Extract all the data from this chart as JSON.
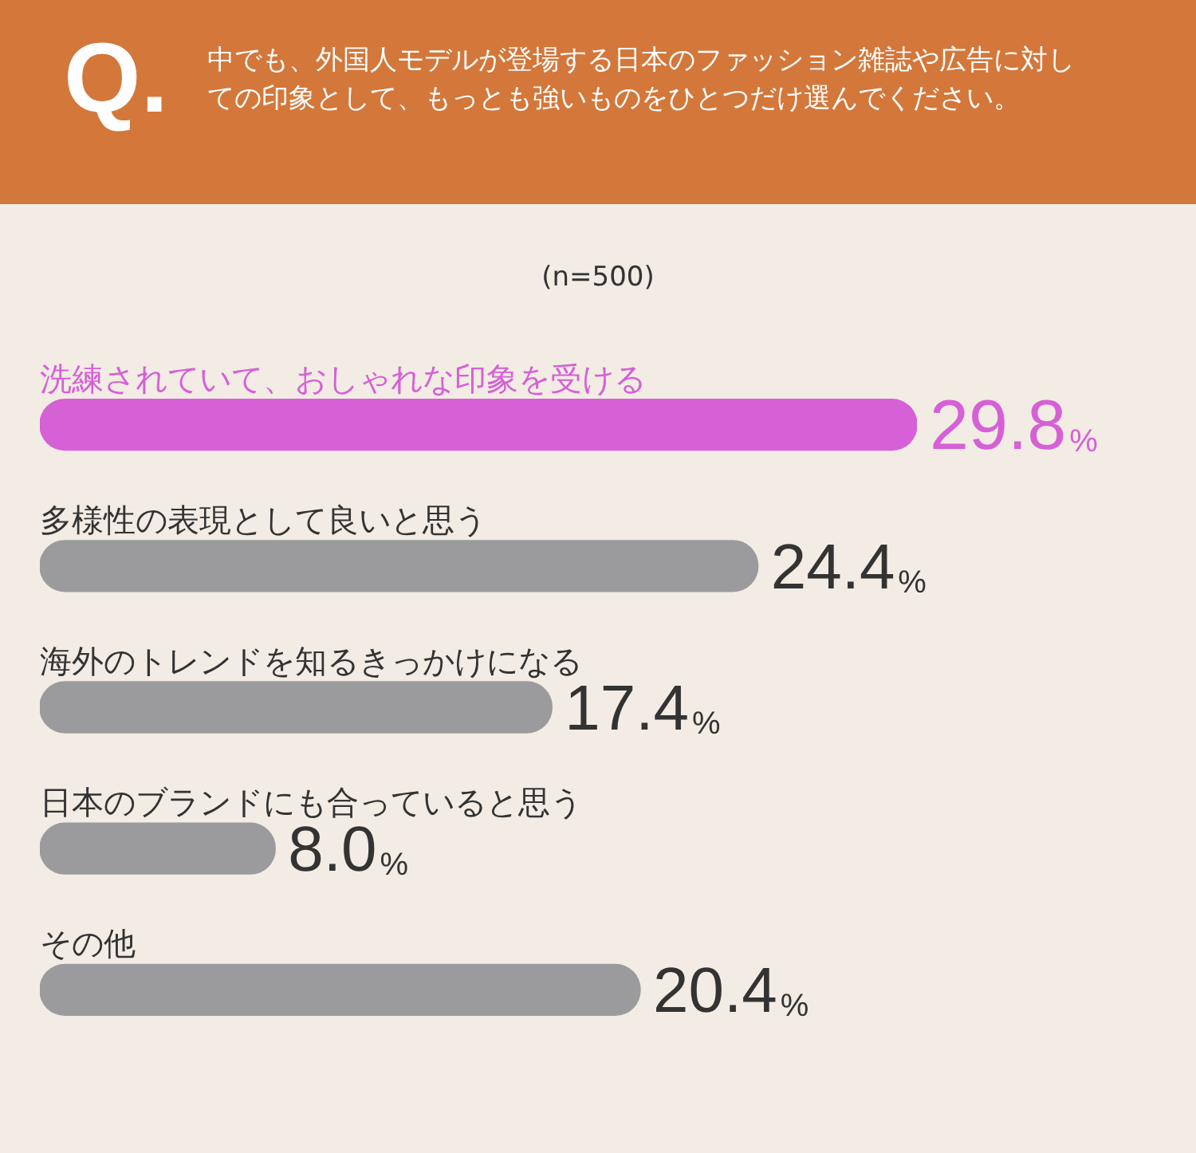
{
  "chart_data": {
    "type": "bar",
    "orientation": "horizontal",
    "title": "中でも、外国人モデルが登場する日本のファッション雑誌や広告に対しての印象として、もっとも強いものをひとつだけ選んでください。",
    "subtitle": "(n=500)",
    "annotations": [
      "Q."
    ],
    "categories": [
      "洗練されていて、おしゃれな印象を受ける",
      "多様性の表現として良いと思う",
      "海外のトレンドを知るきっかけになる",
      "日本のブランドにも合っていると思う",
      "その他"
    ],
    "values": [
      29.8,
      24.4,
      17.4,
      8.0,
      20.4
    ],
    "colors": [
      "#d660d6",
      "#9b9b9d",
      "#9b9b9d",
      "#9b9b9d",
      "#9b9b9d"
    ],
    "value_labels": [
      "29.8%",
      "24.4%",
      "17.4%",
      "8.0%",
      "20.4%"
    ],
    "legend": false
  }
}
